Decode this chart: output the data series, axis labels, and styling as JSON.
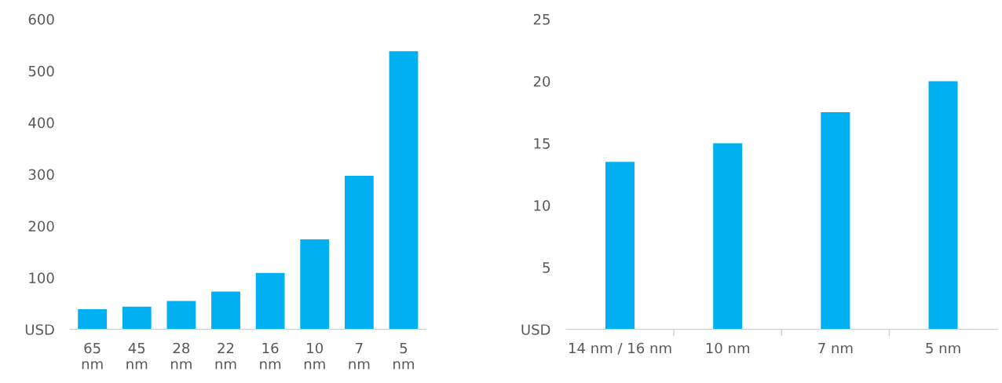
{
  "chart_data": [
    {
      "type": "bar",
      "categories": [
        "65 nm",
        "45 nm",
        "28 nm",
        "22 nm",
        "16 nm",
        "10 nm",
        "7 nm",
        "5 nm"
      ],
      "values": [
        39,
        44,
        55,
        73,
        109,
        174,
        297,
        538
      ],
      "color": "#00b0f0",
      "ylim": [
        0,
        600
      ],
      "yticks": [
        {
          "value": 0,
          "label": "USD"
        },
        100,
        200,
        300,
        400,
        500,
        600
      ],
      "grid": false,
      "legend": false
    },
    {
      "type": "bar",
      "categories": [
        "14 nm / 16 nm",
        "10 nm",
        "7 nm",
        "5 nm"
      ],
      "values": [
        13.5,
        15,
        17.5,
        20
      ],
      "color": "#00b0f0",
      "ylim": [
        0,
        25
      ],
      "yticks": [
        {
          "value": 0,
          "label": "USD"
        },
        5,
        10,
        15,
        20,
        25
      ],
      "grid": false,
      "legend": false
    }
  ]
}
